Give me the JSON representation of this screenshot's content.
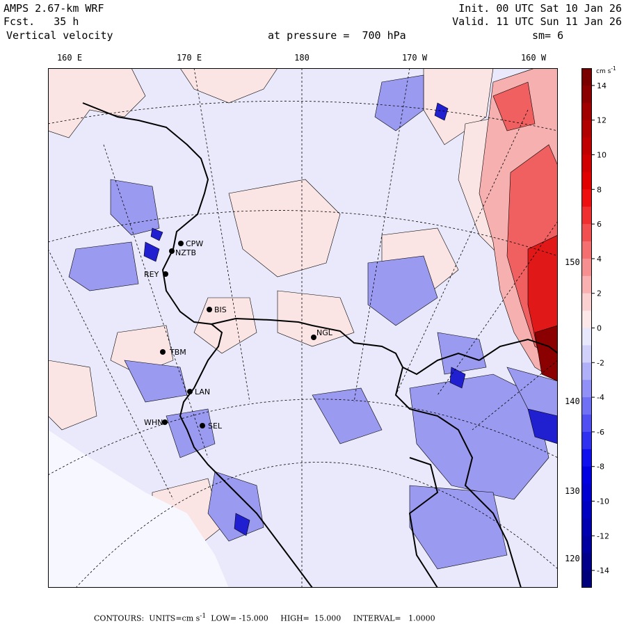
{
  "header": {
    "model": "AMPS 2.67-km WRF",
    "forecast_label": "Fcst.",
    "forecast_value": "35 h",
    "field": "Vertical velocity",
    "init": "Init. 00 UTC Sat 10 Jan 26",
    "valid": "Valid. 11 UTC Sun 11 Jan 26",
    "pressure_label": "at pressure =",
    "pressure_value": "700 hPa",
    "smoothing": "sm= 6"
  },
  "lon_labels": [
    "160 E",
    "170 E",
    "180",
    "170 W",
    "160 W"
  ],
  "lat_labels": [
    "150 W",
    "140 W",
    "130 W",
    "120 W"
  ],
  "stations": [
    {
      "name": "CPW",
      "lon": 166.2,
      "lat": -75.0
    },
    {
      "name": "NZTB",
      "lon": 164.1,
      "lat": -74.7
    },
    {
      "name": "REY",
      "lon": 165.0,
      "lat": -75.8
    },
    {
      "name": "BIS",
      "lon": 170.5,
      "lat": -77.3
    },
    {
      "name": "NGL",
      "lon": 180.5,
      "lat": -79.5
    },
    {
      "name": "TBM",
      "lon": 162.0,
      "lat": -78.2
    },
    {
      "name": "LAN",
      "lon": 164.5,
      "lat": -80.0
    },
    {
      "name": "WHN",
      "lon": 159.5,
      "lat": -81.0
    },
    {
      "name": "SEL",
      "lon": 162.5,
      "lat": -81.5
    }
  ],
  "colorbar": {
    "units_label": "cm s",
    "units_exp": "-1",
    "ticks": [
      14,
      12,
      10,
      8,
      6,
      4,
      2,
      0,
      -2,
      -4,
      -6,
      -8,
      -10,
      -12,
      -14
    ],
    "colors": {
      "strong_up": "#8b0000",
      "up": "#ff2020",
      "weak_up": "#ffe4e4",
      "neutral": "#ffffff",
      "weak_down": "#e4e4ff",
      "down": "#2020ff",
      "strong_down": "#00008b"
    }
  },
  "footer": {
    "contours": "CONTOURS:  UNITS=cm s",
    "exp": "-1",
    "low": "LOW= -15.000",
    "high": "HIGH=  15.000",
    "interval": "INTERVAL=   1.0000"
  }
}
